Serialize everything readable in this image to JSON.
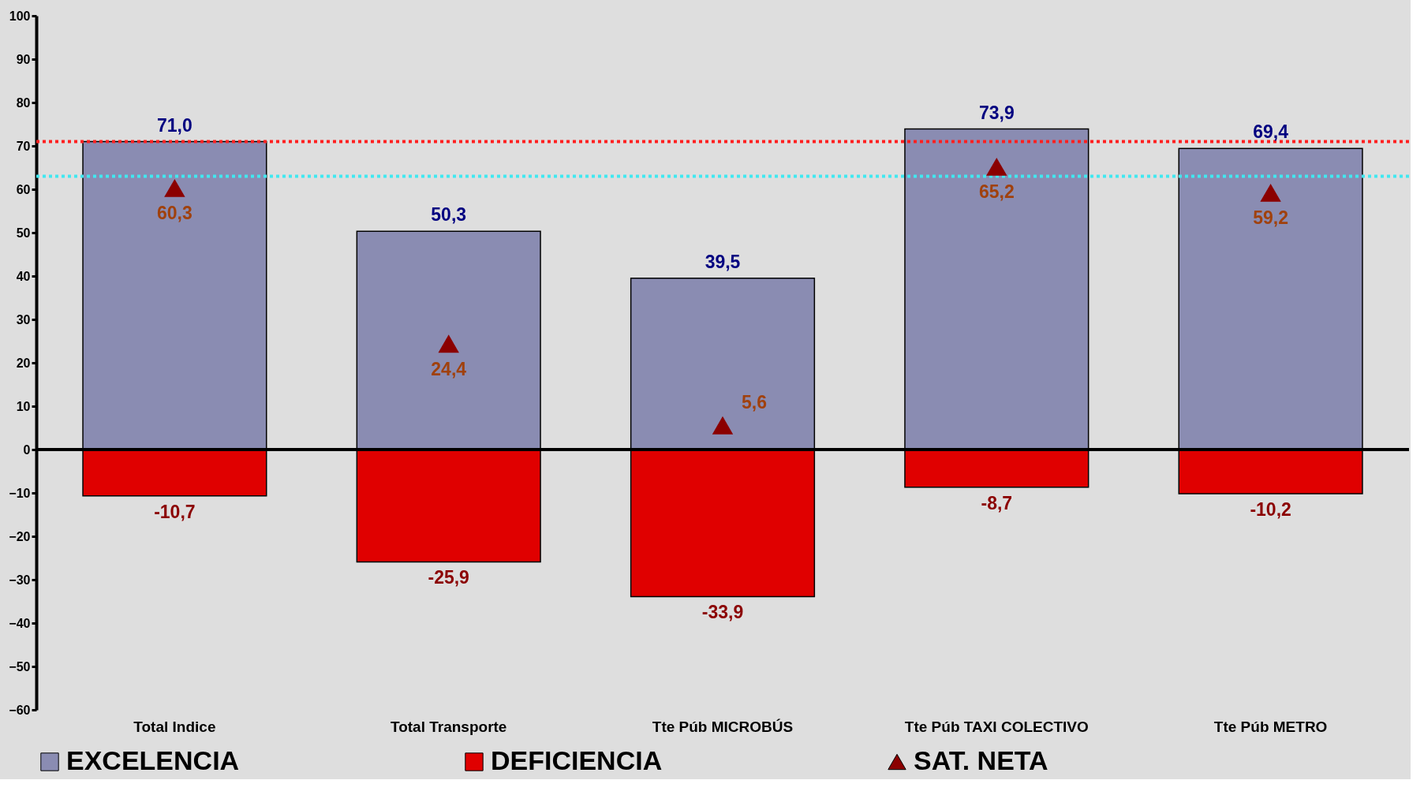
{
  "chart_data": {
    "type": "bar",
    "categories": [
      "Total Indice",
      "Total Transporte",
      "Tte Púb MICROBÚS",
      "Tte Púb TAXI COLECTIVO",
      "Tte Púb METRO"
    ],
    "series": [
      {
        "name": "EXCELENCIA",
        "color": "#8a8cb2",
        "values": [
          71.0,
          50.3,
          39.5,
          73.9,
          69.4
        ],
        "value_labels": [
          "71,0",
          "50,3",
          "39,5",
          "73,9",
          "69,4"
        ]
      },
      {
        "name": "DEFICIENCIA",
        "color": "#e00000",
        "values": [
          -10.7,
          -25.9,
          -33.9,
          -8.7,
          -10.2
        ],
        "value_labels": [
          "-10,7",
          "-25,9",
          "-33,9",
          "-8,7",
          "-10,2"
        ]
      },
      {
        "name": "SAT. NETA",
        "type": "scatter",
        "marker": "triangle",
        "color": "#8b0000",
        "values": [
          60.3,
          24.4,
          5.6,
          65.2,
          59.2
        ],
        "value_labels": [
          "60,3",
          "24,4",
          "5,6",
          "65,2",
          "59,2"
        ]
      }
    ],
    "ylim": [
      -60,
      100
    ],
    "yticks": [
      -60,
      -50,
      -40,
      -30,
      -20,
      -10,
      0,
      10,
      20,
      30,
      40,
      50,
      60,
      70,
      80,
      90,
      100
    ],
    "ref_lines": [
      {
        "axis": "y",
        "value": 71,
        "color": "#ff2020",
        "line_style": "dotted"
      },
      {
        "axis": "y",
        "value": 63,
        "color": "#40e8f0",
        "line_style": "dotted"
      }
    ],
    "stacked": true,
    "legend": "bottom"
  }
}
